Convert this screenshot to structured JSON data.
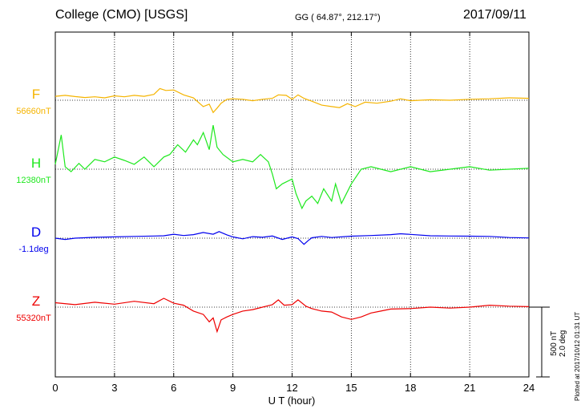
{
  "header": {
    "station": "College (CMO)  [USGS]",
    "coords": "GG ( 64.87°, 212.17°)",
    "date": "2017/09/11"
  },
  "chart_data": {
    "type": "line",
    "xlabel": "U T (hour)",
    "xlim": [
      0,
      24
    ],
    "xticks": [
      0,
      3,
      6,
      9,
      12,
      15,
      18,
      21,
      24
    ],
    "grid": true,
    "scale": {
      "line1": "500 nT",
      "line2": "2.0 deg"
    },
    "credit": "Plotted at 2017/10/12 01:31 UT",
    "series": [
      {
        "name": "F",
        "baseline_label": "56660nT",
        "color": "#f5b400",
        "baseline": 56660,
        "unit": "nT",
        "x": [
          0,
          0.5,
          1,
          1.5,
          2,
          2.5,
          3,
          3.5,
          4,
          4.5,
          5,
          5.3,
          5.6,
          6,
          6.5,
          7,
          7.3,
          7.5,
          7.8,
          8,
          8.2,
          8.4,
          8.7,
          9,
          9.5,
          10,
          10.5,
          11,
          11.3,
          11.7,
          12,
          12.3,
          12.6,
          13,
          13.5,
          14,
          14.4,
          14.8,
          15.2,
          15.7,
          16.3,
          17,
          17.5,
          18,
          19,
          20,
          21,
          22,
          23,
          24
        ],
        "values": [
          80,
          100,
          75,
          55,
          70,
          50,
          90,
          70,
          100,
          80,
          120,
          240,
          200,
          210,
          110,
          50,
          -60,
          -130,
          -80,
          -250,
          -160,
          -60,
          20,
          30,
          20,
          -10,
          20,
          40,
          110,
          100,
          20,
          110,
          40,
          -20,
          -100,
          -130,
          -150,
          -70,
          -130,
          -40,
          -60,
          -20,
          30,
          -10,
          10,
          0,
          20,
          30,
          50,
          40
        ]
      },
      {
        "name": "H",
        "baseline_label": "12380nT",
        "color": "#1ee81e",
        "baseline": 12380,
        "unit": "nT",
        "x": [
          0,
          0.3,
          0.5,
          0.8,
          1.2,
          1.5,
          2,
          2.5,
          3,
          3.5,
          4,
          4.5,
          5,
          5.5,
          5.8,
          6.2,
          6.6,
          7,
          7.2,
          7.5,
          7.8,
          8,
          8.2,
          8.5,
          9,
          9.5,
          10,
          10.4,
          10.8,
          11,
          11.2,
          11.5,
          12,
          12.2,
          12.5,
          12.7,
          13,
          13.3,
          13.6,
          14,
          14.2,
          14.5,
          15,
          15.5,
          16,
          17,
          18,
          19,
          20,
          21,
          22,
          23,
          24
        ],
        "values": [
          100,
          700,
          50,
          -50,
          120,
          0,
          200,
          150,
          250,
          180,
          100,
          250,
          50,
          250,
          300,
          500,
          350,
          600,
          500,
          750,
          400,
          900,
          450,
          300,
          150,
          200,
          150,
          300,
          150,
          -100,
          -400,
          -300,
          -200,
          -500,
          -800,
          -650,
          -550,
          -700,
          -400,
          -650,
          -300,
          -700,
          -300,
          0,
          50,
          -50,
          50,
          -50,
          0,
          50,
          -20,
          0,
          20
        ]
      },
      {
        "name": "D",
        "baseline_label": "-1.1deg",
        "color": "#0000ee",
        "baseline": -1.1,
        "unit": "deg",
        "x": [
          0,
          0.5,
          1,
          2,
          3,
          4,
          5,
          5.5,
          6,
          6.5,
          7,
          7.5,
          8,
          8.3,
          8.7,
          9,
          9.5,
          10,
          10.5,
          11,
          11.5,
          12,
          12.3,
          12.6,
          12.8,
          13,
          13.5,
          14,
          15,
          16,
          17,
          17.5,
          18,
          19,
          20,
          21,
          22,
          23,
          24
        ],
        "values": [
          0,
          -60,
          0,
          40,
          60,
          80,
          100,
          110,
          180,
          120,
          160,
          260,
          180,
          300,
          150,
          60,
          -30,
          70,
          40,
          100,
          -60,
          60,
          -20,
          -280,
          -120,
          20,
          80,
          30,
          90,
          120,
          160,
          200,
          170,
          110,
          100,
          90,
          80,
          30,
          10
        ]
      },
      {
        "name": "Z",
        "baseline_label": "55320nT",
        "color": "#ee0000",
        "baseline": 55320,
        "unit": "nT",
        "x": [
          0,
          1,
          2,
          3,
          4,
          5,
          5.5,
          6,
          6.5,
          7,
          7.5,
          7.8,
          8,
          8.2,
          8.4,
          8.7,
          9,
          9.5,
          10,
          10.5,
          11,
          11.3,
          11.6,
          12,
          12.3,
          12.7,
          13,
          13.5,
          14,
          14.5,
          15,
          15.5,
          16,
          16.5,
          17,
          18,
          19,
          20,
          21,
          22,
          23,
          24
        ],
        "values": [
          90,
          50,
          100,
          60,
          120,
          70,
          180,
          80,
          40,
          -80,
          -150,
          -300,
          -220,
          -500,
          -260,
          -200,
          -150,
          -80,
          -50,
          0,
          50,
          150,
          40,
          50,
          150,
          20,
          -30,
          -80,
          -100,
          -200,
          -250,
          -200,
          -120,
          -80,
          -40,
          -30,
          0,
          -20,
          0,
          40,
          20,
          10
        ]
      }
    ]
  }
}
